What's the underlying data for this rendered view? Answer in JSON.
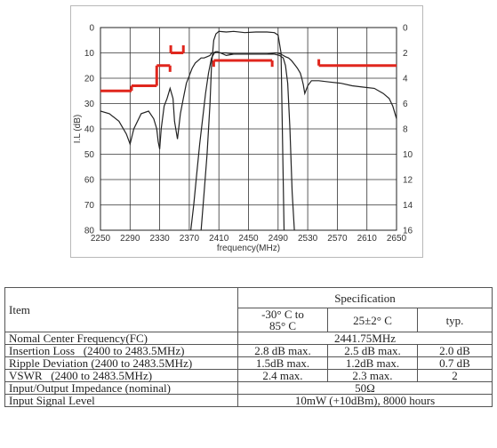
{
  "chart_data": {
    "type": "line",
    "xlabel": "frequency(MHz)",
    "ylabel": "I.L (dB)",
    "x_ticks": [
      "2250",
      "2290",
      "2330",
      "2370",
      "2410",
      "2450",
      "2490",
      "2530",
      "2570",
      "2610",
      "2650"
    ],
    "y_left_ticks": [
      "0",
      "10",
      "20",
      "30",
      "40",
      "50",
      "60",
      "70",
      "80"
    ],
    "y_right_ticks": [
      "0",
      "2",
      "4",
      "6",
      "8",
      "10",
      "12",
      "14",
      "16"
    ],
    "xlim": [
      2250,
      2650
    ],
    "ylim_left": [
      0,
      80
    ],
    "ylim_right": [
      0,
      16
    ],
    "grid": true,
    "series": [
      {
        "axis": "left",
        "x": [
          2250,
          2262,
          2275,
          2285,
          2290,
          2295,
          2305,
          2315,
          2322,
          2326,
          2328,
          2330,
          2332,
          2336,
          2340,
          2344,
          2348,
          2350,
          2354,
          2358,
          2362,
          2366,
          2370,
          2374,
          2378,
          2382,
          2386,
          2390,
          2394,
          2398,
          2400,
          2402,
          2406,
          2412,
          2420,
          2430,
          2445,
          2460,
          2475,
          2485,
          2488,
          2491,
          2494,
          2497,
          2500,
          2504,
          2508,
          2512,
          2516,
          2520,
          2522,
          2524,
          2526,
          2530,
          2535,
          2545,
          2560,
          2575,
          2590,
          2605,
          2620,
          2632,
          2640,
          2645,
          2650
        ],
        "y": [
          33,
          34,
          37,
          42,
          46,
          40,
          34,
          33,
          36,
          40,
          45,
          48,
          40,
          31,
          28,
          24,
          28,
          37,
          44,
          34,
          28,
          22,
          19,
          16,
          14,
          13,
          12,
          12,
          11.5,
          11,
          10,
          10,
          9.5,
          10,
          11,
          10.5,
          10.5,
          10.5,
          10.5,
          10,
          10,
          10.2,
          10.5,
          11,
          11.5,
          12,
          13,
          14.5,
          16,
          18,
          20,
          22.5,
          26,
          23,
          21,
          21,
          21.5,
          22,
          23,
          23.5,
          24,
          26,
          28,
          31,
          36
        ]
      },
      {
        "axis": "left",
        "x": [
          2372,
          2376,
          2380,
          2384,
          2388,
          2392,
          2396,
          2400,
          2404,
          2408,
          2412,
          2420,
          2430,
          2445,
          2460,
          2475,
          2485,
          2492,
          2497,
          2500,
          2503,
          2506,
          2509,
          2512
        ],
        "y": [
          80,
          70,
          58,
          46,
          36,
          26,
          18,
          12,
          10,
          9.5,
          10,
          10,
          10.5,
          10.5,
          10.5,
          10.5,
          10.5,
          11,
          12,
          15,
          22,
          40,
          65,
          80
        ]
      },
      {
        "axis": "right",
        "x": [
          2386,
          2390,
          2394,
          2398,
          2400,
          2403,
          2406,
          2410,
          2420,
          2430,
          2445,
          2460,
          2475,
          2485,
          2490,
          2494,
          2498
        ],
        "y": [
          16,
          13,
          10,
          6,
          3,
          1,
          0.5,
          0.3,
          0.35,
          0.3,
          0.4,
          0.35,
          0.35,
          0.4,
          0.6,
          2,
          16
        ]
      }
    ],
    "limit_lines": [
      {
        "x": [
          2250,
          2292
        ],
        "y": 25
      },
      {
        "x": [
          2292,
          2292
        ],
        "y": [
          23,
          25
        ]
      },
      {
        "x": [
          2292,
          2326
        ],
        "y": 23
      },
      {
        "x": [
          2326,
          2326
        ],
        "y": [
          15,
          23
        ]
      },
      {
        "x": [
          2326,
          2344
        ],
        "y": 15
      },
      {
        "x": [
          2344,
          2344
        ],
        "y": [
          15,
          17.5
        ]
      },
      {
        "x": [
          2345,
          2362
        ],
        "y": 10
      },
      {
        "x": [
          2345,
          2345
        ],
        "y": [
          7,
          10
        ]
      },
      {
        "x": [
          2362,
          2362
        ],
        "y": [
          7,
          10
        ]
      },
      {
        "x": [
          2403,
          2482
        ],
        "y": 13
      },
      {
        "x": [
          2403,
          2403
        ],
        "y": [
          13,
          15.5
        ]
      },
      {
        "x": [
          2482,
          2482
        ],
        "y": [
          13,
          15.5
        ]
      },
      {
        "x": [
          2545,
          2650
        ],
        "y": 15
      },
      {
        "x": [
          2545,
          2545
        ],
        "y": [
          12.5,
          15
        ]
      }
    ]
  },
  "table": {
    "item_header": "Item",
    "spec_header": "Specification",
    "cond_headers": [
      "-30° C to\n85° C",
      "25±2° C",
      "typ."
    ],
    "rows": [
      {
        "item": "Nomal Center Frequency(FC)",
        "span": "2441.75MHz"
      },
      {
        "item": "Insertion Loss   (2400 to 2483.5MHz)",
        "vals": [
          "2.8 dB max.",
          "2.5 dB max.",
          "2.0 dB"
        ]
      },
      {
        "item": "Ripple Deviation (2400 to 2483.5MHz)",
        "vals": [
          "1.5dB max.",
          "1.2dB max.",
          "0.7 dB"
        ]
      },
      {
        "item": "VSWR   (2400 to 2483.5MHz)",
        "vals": [
          "2.4 max.",
          "2.3 max.",
          "2"
        ]
      },
      {
        "item": "Input/Output Impedance (nominal)",
        "span": "50Ω"
      },
      {
        "item": "Input Signal Level",
        "span": "10mW (+10dBm), 8000 hours"
      }
    ]
  }
}
